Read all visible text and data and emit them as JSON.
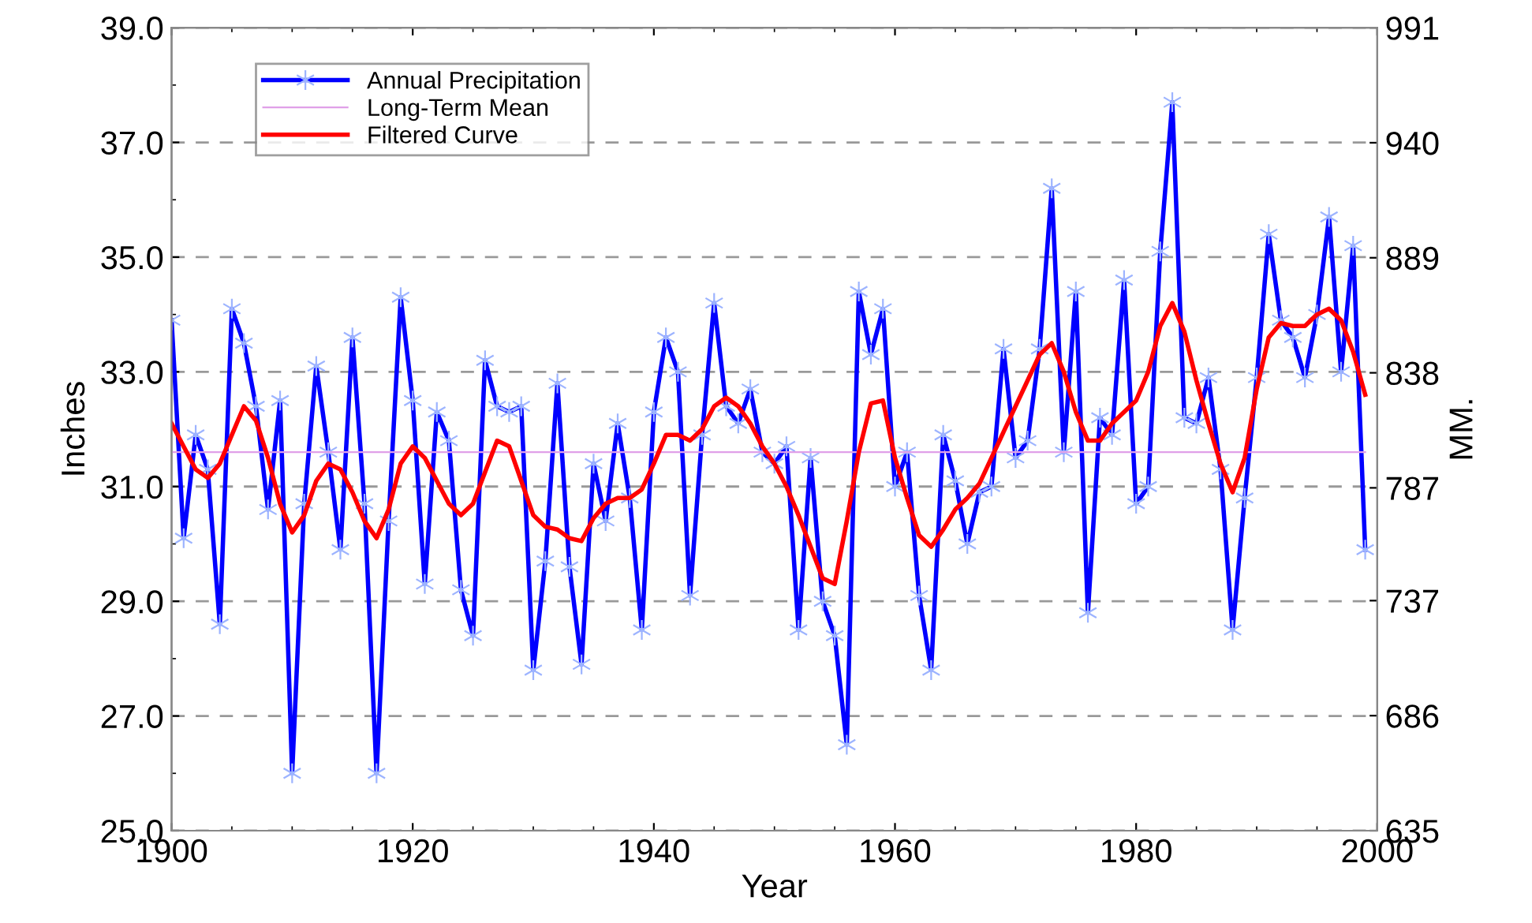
{
  "chart_data": {
    "type": "line",
    "xlabel": "Year",
    "ylabel": "Inches",
    "y2label": "MM.",
    "xlim": [
      1900,
      2000
    ],
    "xticks": [
      1900,
      1920,
      1940,
      1960,
      1980,
      2000,
      {
        "value": 1905,
        "label": null
      },
      {
        "value": 1910,
        "label": null
      },
      {
        "value": 1915,
        "label": null
      },
      {
        "value": 1925,
        "label": null
      },
      {
        "value": 1930,
        "label": null
      },
      {
        "value": 1935,
        "label": null
      },
      {
        "value": 1945,
        "label": null
      },
      {
        "value": 1950,
        "label": null
      },
      {
        "value": 1955,
        "label": null
      },
      {
        "value": 1965,
        "label": null
      },
      {
        "value": 1970,
        "label": null
      },
      {
        "value": 1975,
        "label": null
      },
      {
        "value": 1985,
        "label": null
      },
      {
        "value": 1990,
        "label": null
      },
      {
        "value": 1995,
        "label": null
      }
    ],
    "ylim": [
      25,
      39
    ],
    "yticks": [
      {
        "value": 25,
        "label": "25.0"
      },
      {
        "value": 27,
        "label": "27.0"
      },
      {
        "value": 29,
        "label": "29.0"
      },
      {
        "value": 31,
        "label": "31.0"
      },
      {
        "value": 33,
        "label": "33.0"
      },
      {
        "value": 35,
        "label": "35.0"
      },
      {
        "value": 37,
        "label": "37.0"
      },
      {
        "value": 39,
        "label": "39.0"
      },
      {
        "value": 26,
        "label": null
      },
      {
        "value": 28,
        "label": null
      },
      {
        "value": 30,
        "label": null
      },
      {
        "value": 32,
        "label": null
      },
      {
        "value": 34,
        "label": null
      },
      {
        "value": 36,
        "label": null
      },
      {
        "value": 38,
        "label": null
      }
    ],
    "y2lim": [
      635,
      991
    ],
    "y2ticks": [
      635,
      686,
      737,
      787,
      838,
      889,
      940,
      991
    ],
    "grid": "y",
    "legend": "top left",
    "series": [
      {
        "name": "Annual Precipitation",
        "color": "#0000ff",
        "marker": "cross",
        "x": [
          1900,
          1901,
          1902,
          1903,
          1904,
          1905,
          1906,
          1907,
          1908,
          1909,
          1910,
          1911,
          1912,
          1913,
          1914,
          1915,
          1916,
          1917,
          1918,
          1919,
          1920,
          1921,
          1922,
          1923,
          1924,
          1925,
          1926,
          1927,
          1928,
          1929,
          1930,
          1931,
          1932,
          1933,
          1934,
          1935,
          1936,
          1937,
          1938,
          1939,
          1940,
          1941,
          1942,
          1943,
          1944,
          1945,
          1946,
          1947,
          1948,
          1949,
          1950,
          1951,
          1952,
          1953,
          1954,
          1955,
          1956,
          1957,
          1958,
          1959,
          1960,
          1961,
          1962,
          1963,
          1964,
          1965,
          1966,
          1967,
          1968,
          1969,
          1970,
          1971,
          1972,
          1973,
          1974,
          1975,
          1976,
          1977,
          1978,
          1979,
          1980,
          1981,
          1982,
          1983,
          1984,
          1985,
          1986,
          1987,
          1988,
          1989,
          1990,
          1991,
          1992,
          1993,
          1994,
          1995,
          1996,
          1997,
          1998,
          1999
        ],
        "values": [
          33.9,
          30.1,
          31.9,
          31.3,
          28.6,
          34.1,
          33.5,
          32.4,
          30.6,
          32.5,
          26.0,
          30.7,
          33.1,
          31.6,
          29.9,
          33.6,
          30.7,
          26.0,
          30.4,
          34.3,
          32.5,
          29.3,
          32.3,
          31.8,
          29.2,
          28.4,
          33.2,
          32.4,
          32.3,
          32.4,
          27.8,
          29.7,
          32.8,
          29.6,
          27.9,
          31.4,
          30.4,
          32.1,
          30.8,
          28.5,
          32.3,
          33.6,
          33.0,
          29.1,
          31.9,
          34.2,
          32.4,
          32.1,
          32.7,
          31.6,
          31.4,
          31.7,
          28.5,
          31.5,
          29.0,
          28.4,
          26.5,
          34.4,
          33.3,
          34.1,
          31.0,
          31.6,
          29.1,
          27.8,
          31.9,
          31.1,
          30.0,
          30.9,
          31.0,
          33.4,
          31.5,
          31.8,
          33.4,
          36.2,
          31.6,
          34.4,
          28.8,
          32.2,
          31.9,
          34.6,
          30.7,
          31.0,
          35.1,
          37.7,
          32.2,
          32.1,
          32.9,
          31.3,
          28.5,
          30.8,
          32.9,
          35.4,
          33.9,
          33.6,
          32.9,
          34.0,
          35.7,
          33.0,
          35.2,
          29.9
        ]
      },
      {
        "name": "Long-Term Mean",
        "color": "#e0a0e8",
        "marker": "none",
        "x": [
          1900,
          1999
        ],
        "values": [
          31.6,
          31.6
        ]
      },
      {
        "name": "Filtered Curve",
        "color": "#ff0000",
        "marker": "none",
        "x": [
          1900,
          1902,
          1903,
          1904,
          1906,
          1907,
          1908,
          1909,
          1910,
          1911,
          1912,
          1913,
          1914,
          1915,
          1916,
          1917,
          1918,
          1919,
          1920,
          1921,
          1922,
          1923,
          1924,
          1925,
          1926,
          1927,
          1928,
          1929,
          1930,
          1931,
          1932,
          1933,
          1934,
          1935,
          1936,
          1937,
          1938,
          1939,
          1940,
          1941,
          1942,
          1943,
          1944,
          1945,
          1946,
          1947,
          1948,
          1949,
          1950,
          1951,
          1952,
          1953,
          1954,
          1955,
          1956,
          1957,
          1958,
          1959,
          1960,
          1961,
          1962,
          1963,
          1964,
          1965,
          1966,
          1967,
          1968,
          1969,
          1970,
          1971,
          1972,
          1973,
          1974,
          1975,
          1976,
          1977,
          1978,
          1979,
          1980,
          1981,
          1982,
          1983,
          1984,
          1985,
          1986,
          1987,
          1988,
          1989,
          1990,
          1991,
          1992,
          1993,
          1994,
          1995,
          1996,
          1997,
          1998,
          1999
        ],
        "values": [
          32.1,
          31.3,
          31.15,
          31.4,
          32.4,
          32.15,
          31.5,
          30.7,
          30.2,
          30.5,
          31.1,
          31.4,
          31.3,
          30.9,
          30.4,
          30.1,
          30.6,
          31.4,
          31.7,
          31.5,
          31.1,
          30.7,
          30.5,
          30.7,
          31.25,
          31.8,
          31.7,
          31.1,
          30.5,
          30.3,
          30.25,
          30.1,
          30.05,
          30.45,
          30.7,
          30.8,
          30.8,
          30.95,
          31.4,
          31.9,
          31.9,
          31.8,
          32.0,
          32.4,
          32.55,
          32.4,
          32.1,
          31.7,
          31.4,
          31.0,
          30.5,
          29.95,
          29.4,
          29.3,
          30.4,
          31.6,
          32.45,
          32.5,
          31.5,
          30.8,
          30.15,
          29.95,
          30.25,
          30.6,
          30.8,
          31.05,
          31.5,
          31.95,
          32.4,
          32.85,
          33.3,
          33.5,
          33.0,
          32.3,
          31.8,
          31.8,
          32.1,
          32.3,
          32.5,
          33.0,
          33.8,
          34.2,
          33.7,
          32.85,
          32.1,
          31.4,
          30.9,
          31.5,
          32.7,
          33.6,
          33.85,
          33.8,
          33.8,
          34.0,
          34.1,
          33.9,
          33.35,
          32.6
        ]
      }
    ]
  }
}
